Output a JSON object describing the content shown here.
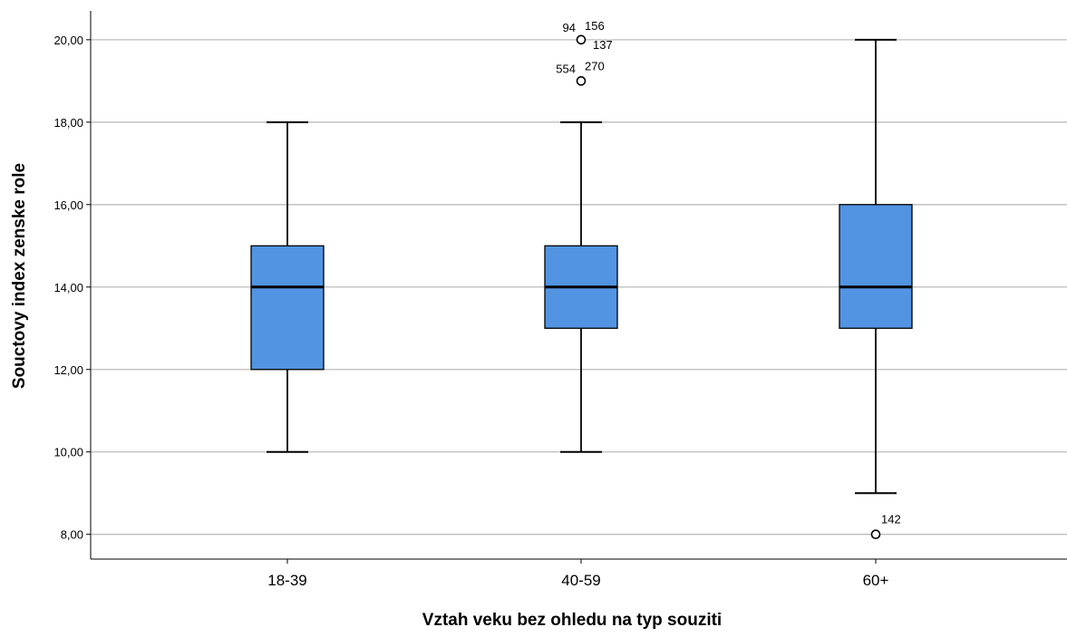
{
  "chart_data": {
    "type": "box",
    "title": "",
    "xlabel": "Vztah veku bez ohledu na typ souziti",
    "ylabel": "Souctovy index zenske role",
    "ylim": [
      7.4,
      20.7
    ],
    "yticks": [
      8,
      10,
      12,
      14,
      16,
      18,
      20
    ],
    "ytick_labels": [
      "8,00",
      "10,00",
      "12,00",
      "14,00",
      "16,00",
      "18,00",
      "20,00"
    ],
    "grid": "horizontal",
    "box_color": "#5294e2",
    "categories": [
      "18-39",
      "40-59",
      "60+"
    ],
    "boxes": [
      {
        "category": "18-39",
        "whisker_low": 10,
        "q1": 12,
        "median": 14,
        "q3": 15,
        "whisker_high": 18,
        "outliers": []
      },
      {
        "category": "40-59",
        "whisker_low": 10,
        "q1": 13,
        "median": 14,
        "q3": 15,
        "whisker_high": 18,
        "outliers": [
          {
            "value": 20,
            "labels": [
              "94",
              "156",
              "137"
            ]
          },
          {
            "value": 19,
            "labels": [
              "554",
              "270"
            ]
          }
        ]
      },
      {
        "category": "60+",
        "whisker_low": 9,
        "q1": 13,
        "median": 14,
        "q3": 16,
        "whisker_high": 20,
        "outliers": [
          {
            "value": 8,
            "labels": [
              "142"
            ]
          }
        ]
      }
    ]
  }
}
